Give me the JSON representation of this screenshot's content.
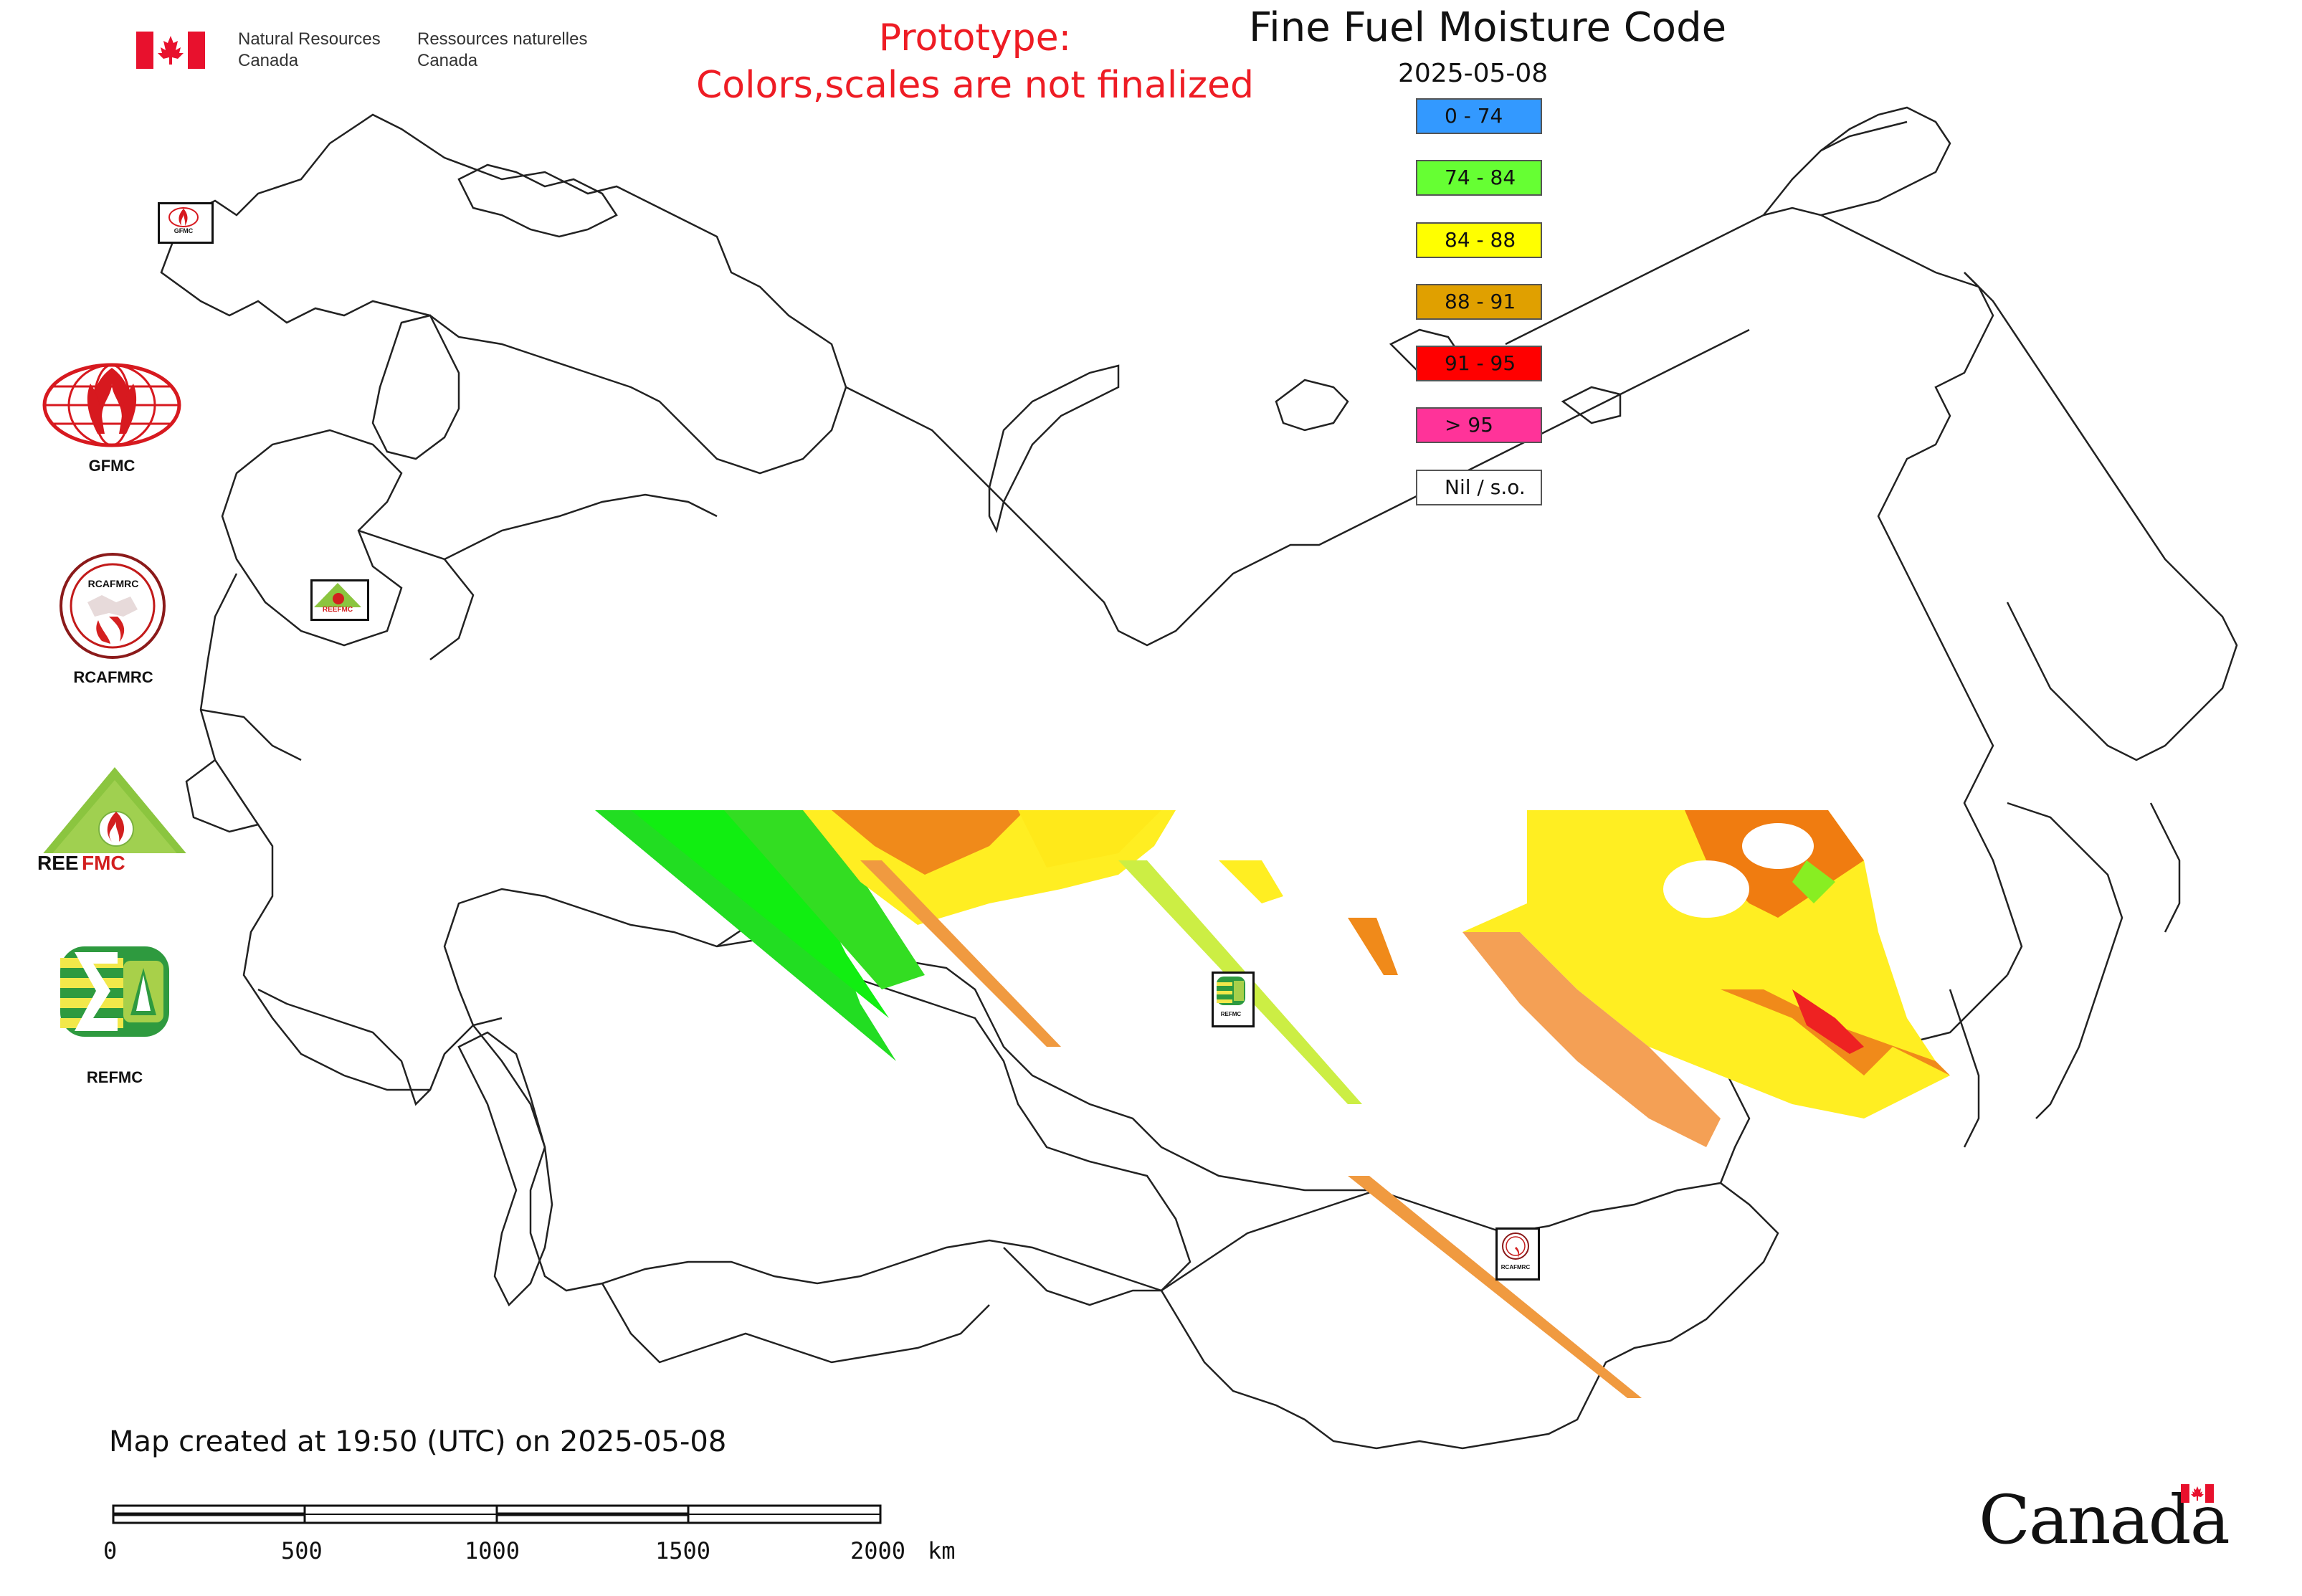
{
  "header": {
    "agency_en": [
      "Natural Resources",
      "Canada"
    ],
    "agency_fr": [
      "Ressources naturelles",
      "Canada"
    ],
    "prototype_line1": "Prototype:",
    "prototype_line2": "Colors,scales are not finalized"
  },
  "map": {
    "title": "Fine Fuel Moisture Code",
    "date": "2025-05-08",
    "created_note": "Map created at 19:50 (UTC) on 2025-05-08",
    "wordmark": "Canada"
  },
  "legend": [
    {
      "label": "0 - 74",
      "color": "#3399ff"
    },
    {
      "label": "74 - 84",
      "color": "#66ff33"
    },
    {
      "label": "84 - 88",
      "color": "#ffff00"
    },
    {
      "label": "88 - 91",
      "color": "#e0a000"
    },
    {
      "label": "91 - 95",
      "color": "#ff0000"
    },
    {
      "label": "> 95",
      "color": "#ff3399"
    },
    {
      "label": "Nil / s.o.",
      "color": "#ffffff"
    }
  ],
  "logos": [
    {
      "name": "GFMC",
      "label": "GFMC"
    },
    {
      "name": "RCAFMRC",
      "label": "RCAFMRC",
      "ring_text": "RCAFMRC"
    },
    {
      "name": "REEFMC",
      "label": "REEFMC"
    },
    {
      "name": "REFMC",
      "label": "REFMC"
    }
  ],
  "map_markers": [
    {
      "name": "GFMC",
      "label": "GFMC"
    },
    {
      "name": "REEFMC",
      "label": "REEFMC"
    },
    {
      "name": "REFMC",
      "label": "REFMC"
    },
    {
      "name": "RCAFMRC",
      "label": "RCAFMRC"
    }
  ],
  "scale_bar": {
    "ticks": [
      "0",
      "500",
      "1000",
      "1500",
      "2000"
    ],
    "unit": "km"
  }
}
